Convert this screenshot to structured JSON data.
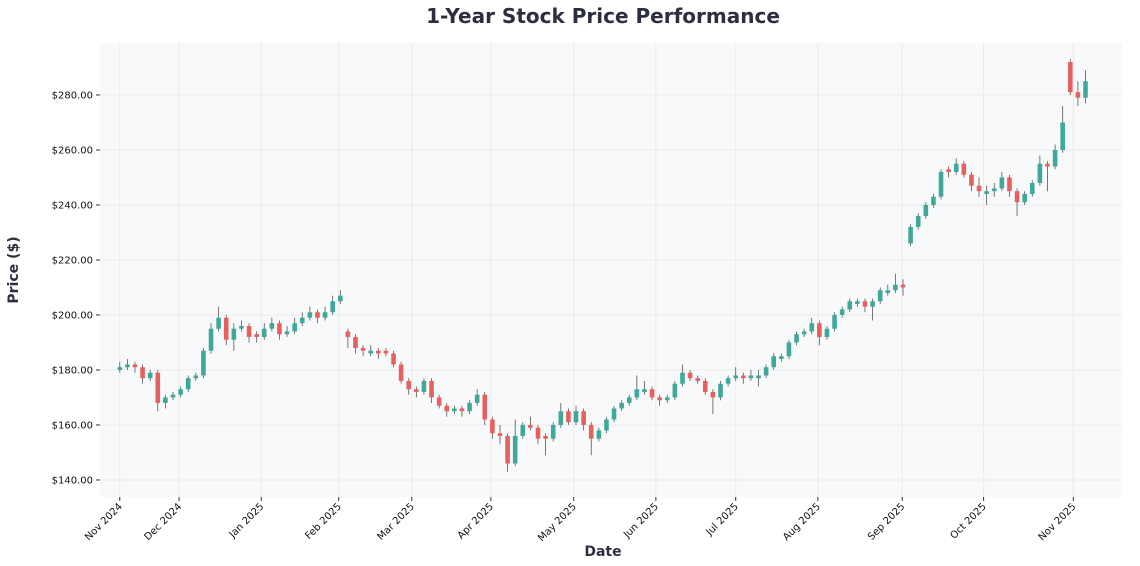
{
  "chart_data": {
    "type": "candlestick",
    "title": "1-Year Stock Price Performance",
    "xlabel": "Date",
    "ylabel": "Price ($)",
    "ylim": [
      133.8,
      298.9
    ],
    "xlim": [
      -2.6,
      131.8
    ],
    "grid": true,
    "colors": {
      "up": "#3fa89b",
      "down": "#e8605e",
      "plot_bg": "#f8f9fa",
      "grid": "#e9eaec",
      "wick": "#555555"
    },
    "y_ticks": [
      {
        "value": 140,
        "label": "$140.00"
      },
      {
        "value": 160,
        "label": "$160.00"
      },
      {
        "value": 180,
        "label": "$180.00"
      },
      {
        "value": 200,
        "label": "$200.00"
      },
      {
        "value": 220,
        "label": "$220.00"
      },
      {
        "value": 240,
        "label": "$240.00"
      },
      {
        "value": 260,
        "label": "$260.00"
      },
      {
        "value": 280,
        "label": "$280.00"
      }
    ],
    "x_ticks": [
      {
        "index": 0,
        "label": "Nov 2024"
      },
      {
        "index": 7.8,
        "label": "Dec 2024"
      },
      {
        "index": 18.6,
        "label": "Jan 2025"
      },
      {
        "index": 28.8,
        "label": "Feb 2025"
      },
      {
        "index": 38.4,
        "label": "Mar 2025"
      },
      {
        "index": 48.8,
        "label": "Apr 2025"
      },
      {
        "index": 59.7,
        "label": "May 2025"
      },
      {
        "index": 70.5,
        "label": "Jun 2025"
      },
      {
        "index": 81.0,
        "label": "Jul 2025"
      },
      {
        "index": 91.8,
        "label": "Aug 2025"
      },
      {
        "index": 102.9,
        "label": "Sep 2025"
      },
      {
        "index": 113.6,
        "label": "Oct 2025"
      },
      {
        "index": 125.4,
        "label": "Nov 2025"
      }
    ],
    "ohlc_columns": [
      "open",
      "high",
      "low",
      "close"
    ],
    "ohlc": [
      [
        180,
        183,
        179,
        181
      ],
      [
        181,
        184,
        180,
        182
      ],
      [
        182,
        183,
        179,
        181
      ],
      [
        181,
        182,
        175,
        177
      ],
      [
        177,
        180,
        176,
        179
      ],
      [
        179,
        180,
        165,
        168
      ],
      [
        168,
        171,
        166,
        170
      ],
      [
        170,
        172,
        169,
        171
      ],
      [
        171,
        174,
        170,
        173
      ],
      [
        173,
        178,
        172,
        177
      ],
      [
        177,
        179,
        176,
        178
      ],
      [
        178,
        188,
        177,
        187
      ],
      [
        187,
        197,
        186,
        195
      ],
      [
        195,
        203,
        194,
        199
      ],
      [
        199,
        200,
        189,
        191
      ],
      [
        191,
        197,
        187,
        195
      ],
      [
        195,
        198,
        194,
        196
      ],
      [
        196,
        197,
        190,
        192
      ],
      [
        193,
        194,
        190,
        192
      ],
      [
        192,
        197,
        191,
        195
      ],
      [
        195,
        199,
        194,
        197
      ],
      [
        197,
        198,
        191,
        193
      ],
      [
        193,
        196,
        192,
        194
      ],
      [
        194,
        199,
        193,
        197
      ],
      [
        197,
        201,
        196,
        199
      ],
      [
        199,
        203,
        198,
        201
      ],
      [
        201,
        202,
        197,
        199
      ],
      [
        199,
        203,
        198,
        201
      ],
      [
        201,
        207,
        200,
        205
      ],
      [
        205,
        209,
        204,
        207
      ],
      [
        194,
        195,
        188,
        192
      ],
      [
        192,
        193,
        186,
        188
      ],
      [
        188,
        189,
        185,
        187
      ],
      [
        186,
        189,
        185,
        187
      ],
      [
        187,
        188,
        184,
        186
      ],
      [
        187,
        188,
        185,
        186
      ],
      [
        186,
        187,
        181,
        182
      ],
      [
        182,
        183,
        175,
        176
      ],
      [
        176,
        177,
        171,
        173
      ],
      [
        173,
        174,
        170,
        172
      ],
      [
        172,
        177,
        171,
        176
      ],
      [
        176,
        177,
        168,
        170
      ],
      [
        170,
        171,
        166,
        167
      ],
      [
        167,
        168,
        163,
        165
      ],
      [
        165,
        167,
        164,
        166
      ],
      [
        166,
        167,
        163,
        165
      ],
      [
        165,
        169,
        164,
        168
      ],
      [
        168,
        173,
        167,
        171
      ],
      [
        171,
        172,
        160,
        162
      ],
      [
        162,
        163,
        155,
        157
      ],
      [
        157,
        160,
        153,
        156
      ],
      [
        156,
        157,
        143,
        146
      ],
      [
        146,
        162,
        145,
        156
      ],
      [
        156,
        161,
        155,
        160
      ],
      [
        160,
        163,
        158,
        159
      ],
      [
        159,
        160,
        153,
        155
      ],
      [
        156,
        157,
        149,
        155
      ],
      [
        155,
        161,
        154,
        160
      ],
      [
        160,
        168,
        159,
        165
      ],
      [
        165,
        166,
        160,
        161
      ],
      [
        161,
        167,
        160,
        165
      ],
      [
        165,
        166,
        158,
        160
      ],
      [
        160,
        161,
        149,
        155
      ],
      [
        155,
        159,
        154,
        158
      ],
      [
        158,
        163,
        157,
        162
      ],
      [
        162,
        167,
        161,
        166
      ],
      [
        166,
        169,
        165,
        168
      ],
      [
        168,
        171,
        167,
        170
      ],
      [
        170,
        178,
        169,
        173
      ],
      [
        172,
        176,
        171,
        173
      ],
      [
        173,
        174,
        169,
        170
      ],
      [
        170,
        171,
        167,
        169
      ],
      [
        169,
        171,
        168,
        170
      ],
      [
        170,
        176,
        169,
        175
      ],
      [
        175,
        182,
        174,
        179
      ],
      [
        179,
        180,
        176,
        177
      ],
      [
        177,
        178,
        175,
        176
      ],
      [
        176,
        177,
        171,
        172
      ],
      [
        172,
        173,
        164,
        170
      ],
      [
        170,
        176,
        169,
        175
      ],
      [
        175,
        178,
        174,
        177
      ],
      [
        177,
        181,
        176,
        178
      ],
      [
        178,
        179,
        175,
        177
      ],
      [
        177,
        180,
        176,
        178
      ],
      [
        177,
        180,
        174,
        178
      ],
      [
        178,
        182,
        177,
        181
      ],
      [
        181,
        186,
        180,
        185
      ],
      [
        184,
        186,
        183,
        185
      ],
      [
        185,
        191,
        184,
        190
      ],
      [
        190,
        194,
        189,
        193
      ],
      [
        193,
        195,
        192,
        194
      ],
      [
        194,
        199,
        193,
        197
      ],
      [
        197,
        198,
        189,
        192
      ],
      [
        192,
        196,
        191,
        195
      ],
      [
        195,
        201,
        194,
        200
      ],
      [
        200,
        203,
        199,
        202
      ],
      [
        202,
        206,
        201,
        205
      ],
      [
        204,
        206,
        203,
        205
      ],
      [
        205,
        206,
        201,
        203
      ],
      [
        203,
        206,
        198,
        205
      ],
      [
        205,
        210,
        204,
        209
      ],
      [
        208,
        211,
        207,
        209
      ],
      [
        209,
        215,
        208,
        211
      ],
      [
        211,
        213,
        207,
        210
      ],
      [
        226,
        233,
        225,
        232
      ],
      [
        232,
        237,
        231,
        236
      ],
      [
        236,
        241,
        235,
        240
      ],
      [
        240,
        244,
        239,
        243
      ],
      [
        243,
        253,
        242,
        252
      ],
      [
        253,
        254,
        250,
        252
      ],
      [
        252,
        257,
        251,
        255
      ],
      [
        255,
        256,
        250,
        251
      ],
      [
        251,
        252,
        245,
        247
      ],
      [
        247,
        250,
        243,
        245
      ],
      [
        244,
        247,
        240,
        245
      ],
      [
        245,
        248,
        243,
        246
      ],
      [
        246,
        252,
        245,
        250
      ],
      [
        250,
        251,
        243,
        245
      ],
      [
        245,
        246,
        236,
        241
      ],
      [
        241,
        245,
        240,
        244
      ],
      [
        244,
        249,
        243,
        248
      ],
      [
        248,
        258,
        247,
        255
      ],
      [
        255,
        256,
        245,
        254
      ],
      [
        254,
        262,
        253,
        260
      ],
      [
        260,
        276,
        259,
        270
      ],
      [
        292,
        293,
        280,
        281
      ],
      [
        281,
        285,
        276,
        279
      ],
      [
        279,
        289,
        277,
        285
      ]
    ]
  }
}
